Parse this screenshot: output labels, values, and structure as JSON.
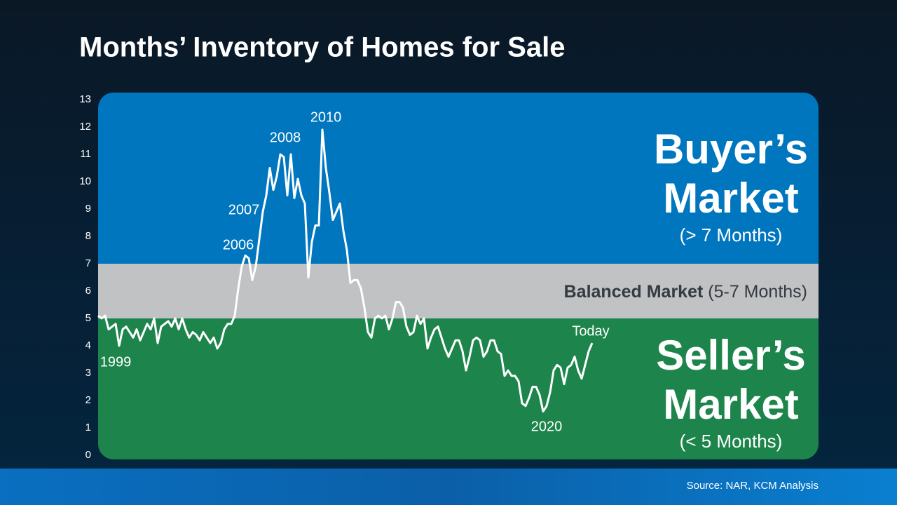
{
  "chart_data": {
    "type": "line",
    "title": "Months’ Inventory of Homes for Sale",
    "values": [
      5.1,
      5.0,
      5.1,
      4.6,
      4.7,
      4.8,
      4.0,
      4.6,
      4.7,
      4.5,
      4.3,
      4.6,
      4.2,
      4.5,
      4.8,
      4.6,
      5.0,
      4.1,
      4.7,
      4.8,
      4.9,
      4.7,
      5.0,
      4.6,
      5.0,
      4.6,
      4.3,
      4.5,
      4.4,
      4.2,
      4.5,
      4.3,
      4.1,
      4.3,
      3.9,
      4.1,
      4.6,
      4.8,
      4.8,
      5.1,
      6.1,
      6.9,
      7.3,
      7.2,
      6.4,
      6.9,
      7.9,
      8.9,
      9.5,
      10.5,
      9.7,
      10.2,
      11.0,
      10.9,
      9.5,
      11.0,
      9.4,
      10.1,
      9.5,
      9.2,
      6.5,
      7.8,
      8.4,
      8.4,
      11.9,
      10.5,
      9.6,
      8.6,
      8.9,
      9.2,
      8.2,
      7.5,
      6.3,
      6.4,
      6.4,
      6.1,
      5.4,
      4.5,
      4.3,
      5.0,
      5.1,
      5.0,
      5.1,
      4.6,
      5.0,
      5.6,
      5.6,
      5.4,
      4.7,
      4.4,
      4.5,
      5.1,
      4.8,
      5.0,
      3.9,
      4.3,
      4.6,
      4.7,
      4.3,
      3.9,
      3.6,
      3.9,
      4.2,
      4.2,
      3.8,
      3.1,
      3.6,
      4.2,
      4.3,
      4.2,
      3.6,
      3.8,
      4.2,
      4.2,
      3.8,
      3.7,
      2.9,
      3.1,
      2.9,
      2.9,
      2.7,
      1.9,
      1.8,
      2.1,
      2.5,
      2.5,
      2.2,
      1.6,
      1.8,
      2.3,
      3.1,
      3.3,
      3.2,
      2.6,
      3.2,
      3.3,
      3.6,
      3.1,
      2.8,
      3.3,
      3.8,
      4.1
    ],
    "color": "#ffffff",
    "ylim": [
      0,
      13
    ],
    "yticks": [
      0,
      1,
      2,
      3,
      4,
      5,
      6,
      7,
      8,
      9,
      10,
      11,
      12,
      13
    ],
    "annotations": [
      "1999",
      "2006",
      "2007",
      "2008",
      "2010",
      "2020",
      "Today"
    ],
    "zones": [
      {
        "from": 7,
        "to": 13,
        "color": "#0076bf",
        "title": "Buyer’s Market",
        "note": "(> 7 Months)"
      },
      {
        "from": 5,
        "to": 7,
        "color": "#c0c2c4",
        "title": "Balanced Market",
        "note": "(5-7 Months)"
      },
      {
        "from": 0,
        "to": 5,
        "color": "#1d854b",
        "title": "Seller’s Market",
        "note": "(< 5 Months)"
      }
    ],
    "source": "Source: NAR, KCM Analysis"
  }
}
